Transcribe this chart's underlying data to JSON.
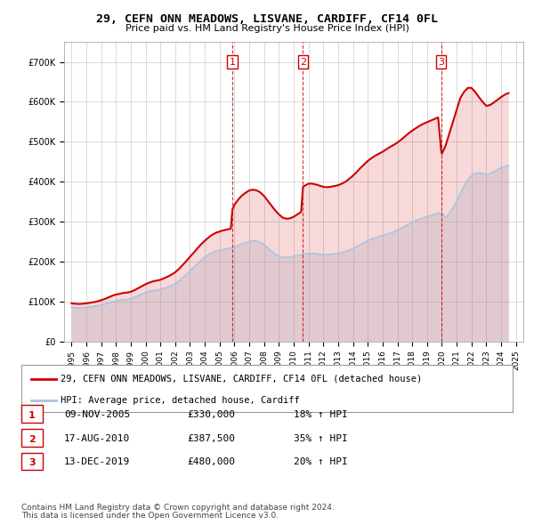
{
  "title": "29, CEFN ONN MEADOWS, LISVANE, CARDIFF, CF14 0FL",
  "subtitle": "Price paid vs. HM Land Registry's House Price Index (HPI)",
  "legend_line1": "29, CEFN ONN MEADOWS, LISVANE, CARDIFF, CF14 0FL (detached house)",
  "legend_line2": "HPI: Average price, detached house, Cardiff",
  "footer1": "Contains HM Land Registry data © Crown copyright and database right 2024.",
  "footer2": "This data is licensed under the Open Government Licence v3.0.",
  "transactions": [
    {
      "num": 1,
      "date": "09-NOV-2005",
      "price": 330000,
      "hpi_pct": "18%",
      "x_year": 2005.86
    },
    {
      "num": 2,
      "date": "17-AUG-2010",
      "price": 387500,
      "hpi_pct": "35%",
      "x_year": 2010.63
    },
    {
      "num": 3,
      "date": "13-DEC-2019",
      "price": 480000,
      "hpi_pct": "20%",
      "x_year": 2019.95
    }
  ],
  "hpi_color": "#aac4e0",
  "price_color": "#cc0000",
  "vline_color": "#cc0000",
  "background_color": "#ffffff",
  "grid_color": "#cccccc",
  "ylim": [
    0,
    750000
  ],
  "yticks": [
    0,
    100000,
    200000,
    300000,
    400000,
    500000,
    600000,
    700000
  ],
  "xlim_start": 1994.5,
  "xlim_end": 2025.5,
  "hpi_data": {
    "years": [
      1995,
      1995.25,
      1995.5,
      1995.75,
      1996,
      1996.25,
      1996.5,
      1996.75,
      1997,
      1997.25,
      1997.5,
      1997.75,
      1998,
      1998.25,
      1998.5,
      1998.75,
      1999,
      1999.25,
      1999.5,
      1999.75,
      2000,
      2000.25,
      2000.5,
      2000.75,
      2001,
      2001.25,
      2001.5,
      2001.75,
      2002,
      2002.25,
      2002.5,
      2002.75,
      2003,
      2003.25,
      2003.5,
      2003.75,
      2004,
      2004.25,
      2004.5,
      2004.75,
      2005,
      2005.25,
      2005.5,
      2005.75,
      2006,
      2006.25,
      2006.5,
      2006.75,
      2007,
      2007.25,
      2007.5,
      2007.75,
      2008,
      2008.25,
      2008.5,
      2008.75,
      2009,
      2009.25,
      2009.5,
      2009.75,
      2010,
      2010.25,
      2010.5,
      2010.75,
      2011,
      2011.25,
      2011.5,
      2011.75,
      2012,
      2012.25,
      2012.5,
      2012.75,
      2013,
      2013.25,
      2013.5,
      2013.75,
      2014,
      2014.25,
      2014.5,
      2014.75,
      2015,
      2015.25,
      2015.5,
      2015.75,
      2016,
      2016.25,
      2016.5,
      2016.75,
      2017,
      2017.25,
      2017.5,
      2017.75,
      2018,
      2018.25,
      2018.5,
      2018.75,
      2019,
      2019.25,
      2019.5,
      2019.75,
      2020,
      2020.25,
      2020.5,
      2020.75,
      2021,
      2021.25,
      2021.5,
      2021.75,
      2022,
      2022.25,
      2022.5,
      2022.75,
      2023,
      2023.25,
      2023.5,
      2023.75,
      2024,
      2024.25,
      2024.5
    ],
    "values": [
      85000,
      84000,
      83500,
      84000,
      85000,
      86000,
      87500,
      89000,
      91000,
      93000,
      96000,
      99000,
      101000,
      103000,
      104000,
      104500,
      107000,
      110000,
      114000,
      118000,
      122000,
      125000,
      127000,
      128000,
      130000,
      133000,
      136000,
      139000,
      144000,
      151000,
      159000,
      167000,
      176000,
      185000,
      194000,
      202000,
      210000,
      217000,
      222000,
      226000,
      228000,
      230000,
      232000,
      234000,
      236000,
      240000,
      244000,
      247000,
      250000,
      252000,
      251000,
      248000,
      242000,
      234000,
      225000,
      218000,
      213000,
      210000,
      210000,
      211000,
      213000,
      215000,
      217000,
      219000,
      220000,
      220000,
      219000,
      218000,
      217000,
      217000,
      218000,
      219000,
      220000,
      222000,
      225000,
      228000,
      232000,
      237000,
      242000,
      247000,
      252000,
      256000,
      259000,
      262000,
      265000,
      268000,
      271000,
      274000,
      278000,
      283000,
      288000,
      293000,
      298000,
      302000,
      306000,
      309000,
      312000,
      315000,
      318000,
      321000,
      320000,
      310000,
      320000,
      335000,
      350000,
      370000,
      390000,
      405000,
      415000,
      420000,
      422000,
      420000,
      418000,
      420000,
      425000,
      430000,
      435000,
      438000,
      440000
    ]
  },
  "price_data": {
    "years": [
      1995,
      1995.25,
      1995.5,
      1995.75,
      1996,
      1996.25,
      1996.5,
      1996.75,
      1997,
      1997.25,
      1997.5,
      1997.75,
      1998,
      1998.25,
      1998.5,
      1998.75,
      1999,
      1999.25,
      1999.5,
      1999.75,
      2000,
      2000.25,
      2000.5,
      2000.75,
      2001,
      2001.25,
      2001.5,
      2001.75,
      2002,
      2002.25,
      2002.5,
      2002.75,
      2003,
      2003.25,
      2003.5,
      2003.75,
      2004,
      2004.25,
      2004.5,
      2004.75,
      2005,
      2005.25,
      2005.5,
      2005.75,
      2005.86,
      2006,
      2006.25,
      2006.5,
      2006.75,
      2007,
      2007.25,
      2007.5,
      2007.75,
      2008,
      2008.25,
      2008.5,
      2008.75,
      2009,
      2009.25,
      2009.5,
      2009.75,
      2010,
      2010.25,
      2010.5,
      2010.63,
      2011,
      2011.25,
      2011.5,
      2011.75,
      2012,
      2012.25,
      2012.5,
      2012.75,
      2013,
      2013.25,
      2013.5,
      2013.75,
      2014,
      2014.25,
      2014.5,
      2014.75,
      2015,
      2015.25,
      2015.5,
      2015.75,
      2016,
      2016.25,
      2016.5,
      2016.75,
      2017,
      2017.25,
      2017.5,
      2017.75,
      2018,
      2018.25,
      2018.5,
      2018.75,
      2019,
      2019.25,
      2019.5,
      2019.75,
      2019.95,
      2020,
      2020.25,
      2020.5,
      2020.75,
      2021,
      2021.25,
      2021.5,
      2021.75,
      2022,
      2022.25,
      2022.5,
      2022.75,
      2023,
      2023.25,
      2023.5,
      2023.75,
      2024,
      2024.25,
      2024.5
    ],
    "values": [
      95000,
      94000,
      93500,
      94000,
      95000,
      96500,
      98000,
      100000,
      103000,
      106000,
      110000,
      114000,
      117000,
      119000,
      121000,
      122000,
      124000,
      128000,
      133000,
      138000,
      143000,
      147000,
      150000,
      152000,
      154000,
      158000,
      162000,
      167000,
      173000,
      181000,
      191000,
      201000,
      212000,
      222000,
      233000,
      243000,
      252000,
      260000,
      267000,
      272000,
      275000,
      278000,
      280000,
      282000,
      330000,
      342000,
      355000,
      365000,
      372000,
      378000,
      380000,
      378000,
      373000,
      364000,
      352000,
      340000,
      328000,
      318000,
      310000,
      307000,
      308000,
      312000,
      318000,
      324000,
      387500,
      395000,
      395000,
      393000,
      390000,
      387000,
      386000,
      387000,
      389000,
      391000,
      395000,
      400000,
      407000,
      415000,
      424000,
      434000,
      443000,
      452000,
      459000,
      465000,
      470000,
      475000,
      481000,
      487000,
      492000,
      498000,
      505000,
      513000,
      521000,
      528000,
      534000,
      540000,
      545000,
      549000,
      553000,
      557000,
      561000,
      480000,
      470000,
      490000,
      520000,
      550000,
      580000,
      610000,
      625000,
      635000,
      635000,
      625000,
      612000,
      600000,
      590000,
      592000,
      598000,
      605000,
      612000,
      618000,
      622000
    ]
  }
}
